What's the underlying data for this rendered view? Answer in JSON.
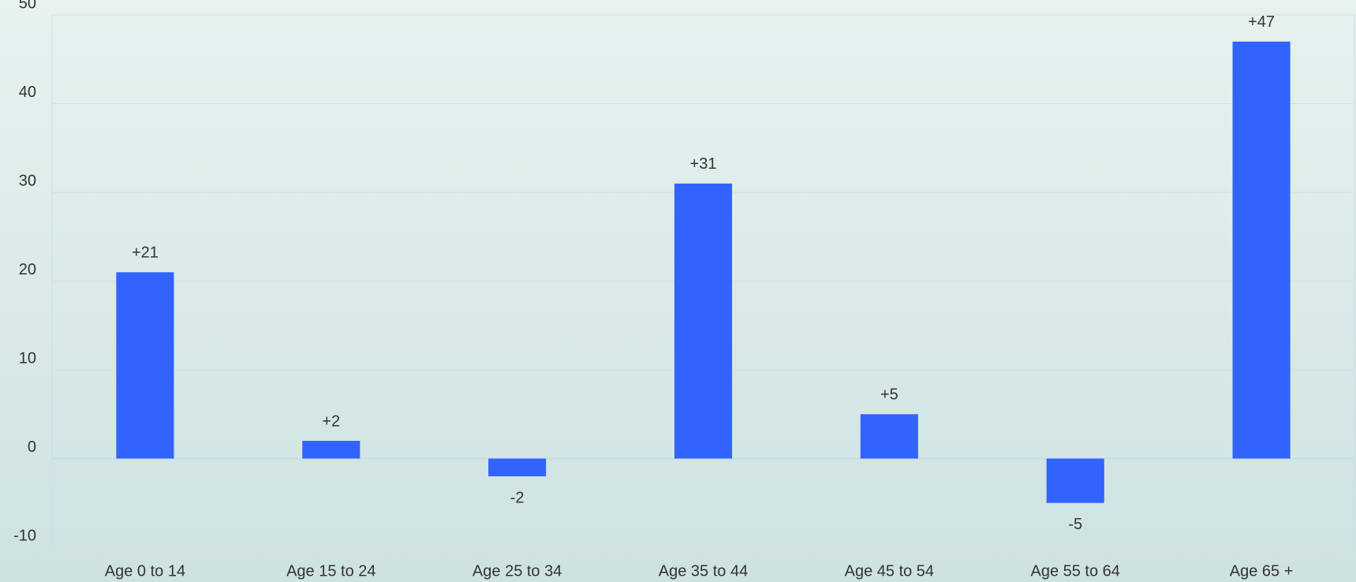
{
  "chart_data": {
    "type": "bar",
    "categories": [
      "Age 0 to 14",
      "Age 15 to 24",
      "Age 25 to 34",
      "Age 35 to 44",
      "Age 45 to 54",
      "Age 55 to 64",
      "Age 65 +"
    ],
    "values": [
      21,
      2,
      -2,
      31,
      5,
      -5,
      47
    ],
    "value_labels": [
      "+21",
      "+2",
      "-2",
      "+31",
      "+5",
      "-5",
      "+47"
    ],
    "color": "#3363ff",
    "ylim": [
      -10,
      50
    ],
    "yticks": [
      -10,
      0,
      10,
      20,
      30,
      40,
      50
    ],
    "grid": true
  }
}
